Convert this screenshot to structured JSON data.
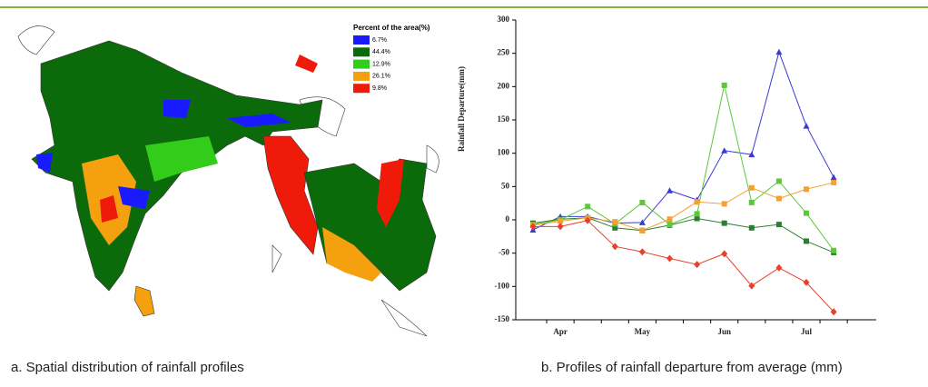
{
  "map": {
    "legend_title": "Percent of the area(%)",
    "legend": [
      {
        "label": "6.7%",
        "value": 6.7,
        "color": "#1a1aff"
      },
      {
        "label": "44.4%",
        "value": 44.4,
        "color": "#0b6b0b"
      },
      {
        "label": "12.9%",
        "value": 12.9,
        "color": "#33cc1a"
      },
      {
        "label": "26.1%",
        "value": 26.1,
        "color": "#f5a00f"
      },
      {
        "label": "9.8%",
        "value": 9.8,
        "color": "#f01a0a"
      }
    ],
    "caption": "a. Spatial distribution of rainfall profiles"
  },
  "chart_data": {
    "type": "line",
    "caption": "b. Profiles of rainfall departure from average (mm)",
    "y_label": "Rainfall Departure(mm)",
    "categories": [
      null,
      "Apr",
      null,
      null,
      "May",
      null,
      null,
      "Jun",
      null,
      null,
      "Jul",
      null
    ],
    "ylim": [
      -150,
      300
    ],
    "yticks": [
      -150,
      -100,
      -50,
      0,
      50,
      100,
      150,
      200,
      250,
      300
    ],
    "series": [
      {
        "color": "#3a3ad6",
        "marker": "triangle",
        "values": [
          -15,
          5,
          5,
          -5,
          -4,
          44,
          30,
          104,
          98,
          252,
          141,
          64
        ]
      },
      {
        "color": "#2e7d32",
        "marker": "square",
        "values": [
          -5,
          1,
          3,
          -12,
          -16,
          -8,
          2,
          -5,
          -12,
          -7,
          -32,
          -49
        ]
      },
      {
        "color": "#5cc83a",
        "marker": "square",
        "values": [
          -7,
          0,
          20,
          -6,
          26,
          -7,
          9,
          202,
          26,
          58,
          10,
          -46
        ]
      },
      {
        "color": "#f5a030",
        "marker": "square",
        "values": [
          -8,
          -2,
          3,
          -3,
          -16,
          1,
          27,
          24,
          48,
          32,
          46,
          56
        ]
      },
      {
        "color": "#e8412a",
        "marker": "diamond",
        "values": [
          -10,
          -10,
          -1,
          -40,
          -48,
          -58,
          -67,
          -51,
          -99,
          -72,
          -94,
          -138
        ]
      }
    ]
  }
}
